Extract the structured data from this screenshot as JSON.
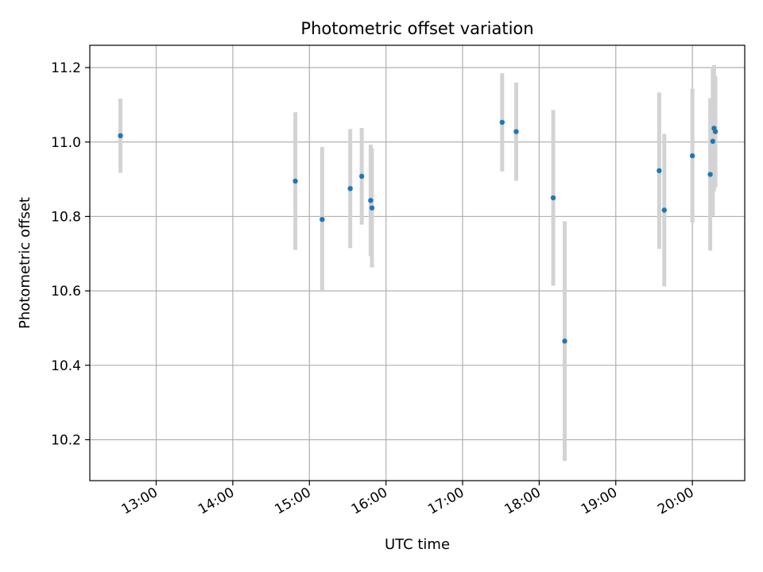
{
  "chart_data": {
    "type": "scatter",
    "title": "Photometric offset variation",
    "xlabel": "UTC time",
    "ylabel": "Photometric offset",
    "x_ticks": [
      "13:00",
      "14:00",
      "15:00",
      "16:00",
      "17:00",
      "18:00",
      "19:00",
      "20:00"
    ],
    "y_ticks": [
      10.2,
      10.4,
      10.6,
      10.8,
      11.0,
      11.2
    ],
    "xlim": [
      "12:08",
      "20:41"
    ],
    "ylim": [
      10.09,
      11.26
    ],
    "grid": true,
    "colors": {
      "points": "#1f77b4",
      "errorbars": "#d3d3d3",
      "grid": "#b0b0b0"
    },
    "points": [
      {
        "x": "12:32",
        "y": 11.017,
        "err": 0.1
      },
      {
        "x": "14:49",
        "y": 10.895,
        "err": 0.185
      },
      {
        "x": "15:10",
        "y": 10.792,
        "err": 0.195
      },
      {
        "x": "15:32",
        "y": 10.875,
        "err": 0.16
      },
      {
        "x": "15:41",
        "y": 10.908,
        "err": 0.13
      },
      {
        "x": "15:48",
        "y": 10.843,
        "err": 0.15
      },
      {
        "x": "15:49",
        "y": 10.823,
        "err": 0.16
      },
      {
        "x": "17:31",
        "y": 11.053,
        "err": 0.132
      },
      {
        "x": "17:42",
        "y": 11.028,
        "err": 0.132
      },
      {
        "x": "18:11",
        "y": 10.85,
        "err": 0.236
      },
      {
        "x": "18:20",
        "y": 10.465,
        "err": 0.322
      },
      {
        "x": "19:34",
        "y": 10.923,
        "err": 0.21
      },
      {
        "x": "19:38",
        "y": 10.817,
        "err": 0.205
      },
      {
        "x": "20:00",
        "y": 10.963,
        "err": 0.18
      },
      {
        "x": "20:14",
        "y": 10.913,
        "err": 0.205
      },
      {
        "x": "20:16",
        "y": 11.002,
        "err": 0.2
      },
      {
        "x": "20:17",
        "y": 11.037,
        "err": 0.17
      },
      {
        "x": "20:18",
        "y": 11.028,
        "err": 0.15
      }
    ]
  }
}
